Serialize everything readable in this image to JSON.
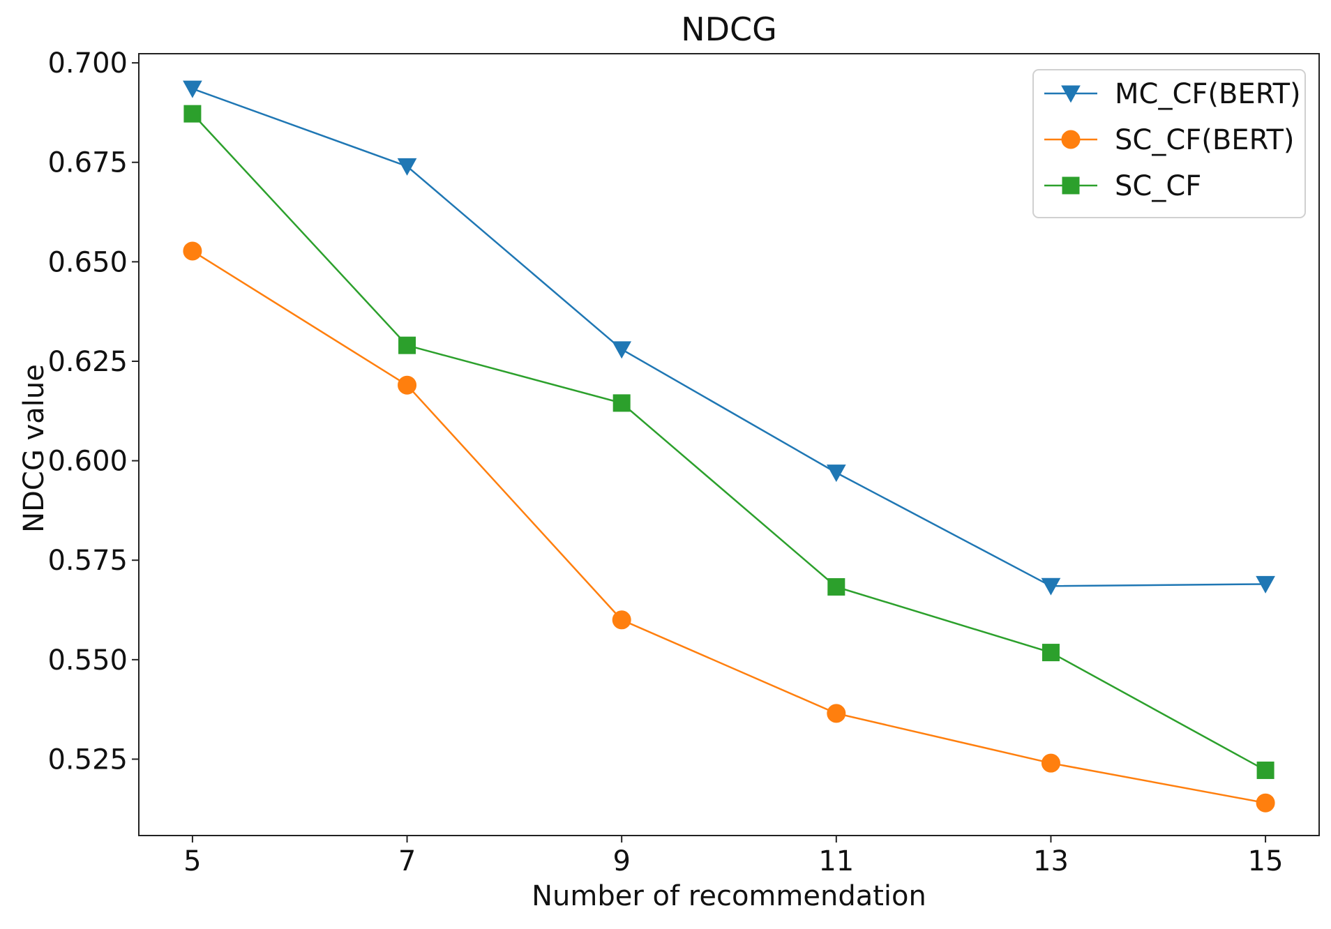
{
  "chart_data": {
    "type": "line",
    "title": "NDCG",
    "xlabel": "Number of recommendation",
    "ylabel": "NDCG value",
    "x": [
      5,
      7,
      9,
      11,
      13,
      15
    ],
    "x_tick_labels": [
      "5",
      "7",
      "9",
      "11",
      "13",
      "15"
    ],
    "y_ticks": [
      0.525,
      0.55,
      0.575,
      0.6,
      0.625,
      0.65,
      0.675,
      0.7
    ],
    "y_tick_labels": [
      "0.525",
      "0.550",
      "0.575",
      "0.600",
      "0.625",
      "0.650",
      "0.675",
      "0.700"
    ],
    "xlim": [
      4.5,
      15.5
    ],
    "ylim": [
      0.5058,
      0.7023
    ],
    "grid": false,
    "legend_position": "top-right",
    "series": [
      {
        "name": "MC_CF(BERT)",
        "color": "#1f77b4",
        "marker": "triangle-down",
        "values": [
          0.6935,
          0.674,
          0.628,
          0.597,
          0.5685,
          0.569
        ]
      },
      {
        "name": "SC_CF(BERT)",
        "color": "#ff7f0e",
        "marker": "circle",
        "values": [
          0.6527,
          0.619,
          0.56,
          0.5365,
          0.524,
          0.514
        ]
      },
      {
        "name": "SC_CF",
        "color": "#2ca02c",
        "marker": "square",
        "values": [
          0.6872,
          0.629,
          0.6145,
          0.5683,
          0.5518,
          0.5222
        ]
      }
    ]
  }
}
